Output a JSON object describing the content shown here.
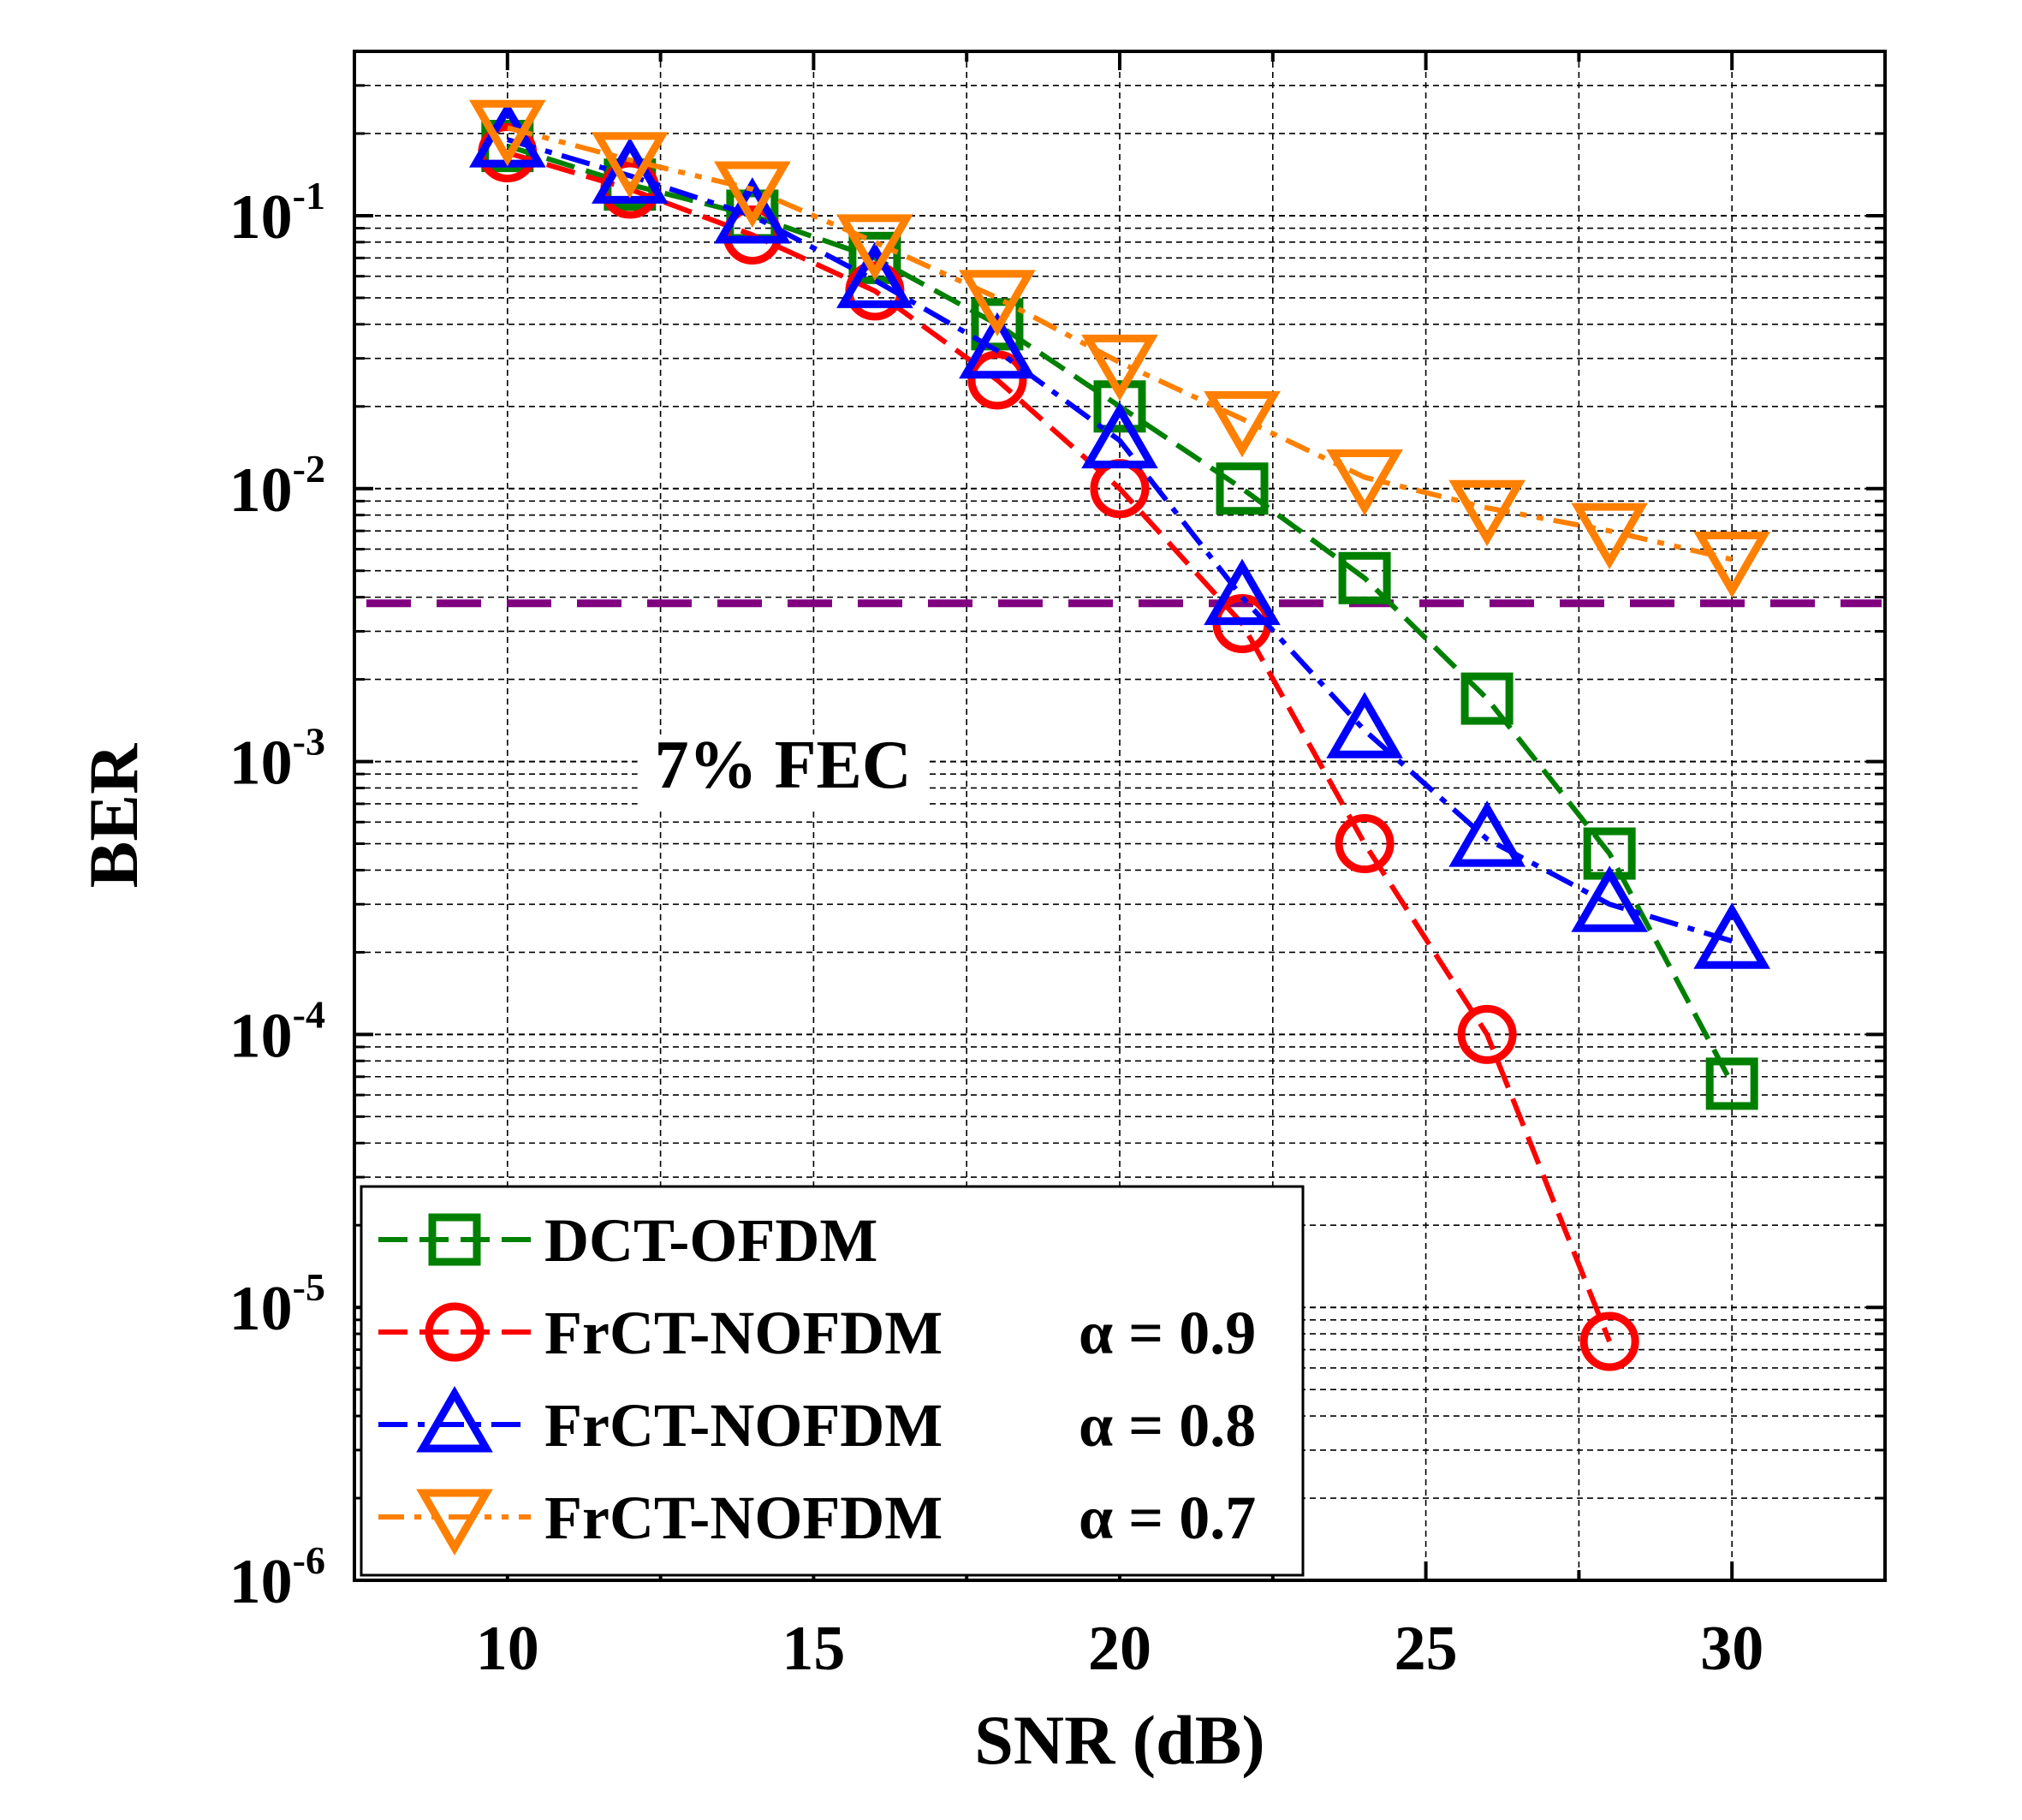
{
  "chart_data": {
    "type": "line",
    "xlabel": "SNR (dB)",
    "ylabel": "BER",
    "y_scale": "log",
    "xlim": [
      7.5,
      32.5
    ],
    "ylim": [
      1e-06,
      0.4
    ],
    "x_ticks": [
      10,
      15,
      20,
      25,
      30
    ],
    "y_ticks": [
      {
        "base": "10",
        "exp": "-1",
        "value": 0.1
      },
      {
        "base": "10",
        "exp": "-2",
        "value": 0.01
      },
      {
        "base": "10",
        "exp": "-3",
        "value": 0.001
      },
      {
        "base": "10",
        "exp": "-4",
        "value": 0.0001
      },
      {
        "base": "10",
        "exp": "-5",
        "value": 1e-05
      },
      {
        "base": "10",
        "exp": "-6",
        "value": 1e-06
      }
    ],
    "grid": true,
    "threshold": {
      "label": "7% FEC",
      "value": 0.0038,
      "color": "#800080"
    },
    "series": [
      {
        "name": "DCT-OFDM",
        "alpha_label": "",
        "color": "#008000",
        "marker": "square",
        "dash": "long-dash",
        "x": [
          10,
          12,
          14,
          16,
          18,
          20,
          22,
          24,
          26,
          28,
          30
        ],
        "values": [
          0.18,
          0.13,
          0.1,
          0.07,
          0.04,
          0.02,
          0.01,
          0.0047,
          0.0017,
          0.00046,
          6.6e-05
        ]
      },
      {
        "name": "FrCT-NOFDM",
        "alpha_label": "α = 0.9",
        "color": "#ff0000",
        "marker": "circle",
        "dash": "long-dash",
        "x": [
          10,
          12,
          14,
          16,
          18,
          20,
          22,
          24,
          26,
          28
        ],
        "values": [
          0.17,
          0.125,
          0.085,
          0.053,
          0.025,
          0.01,
          0.0032,
          0.0005,
          0.0001,
          7.5e-06
        ]
      },
      {
        "name": "FrCT-NOFDM",
        "alpha_label": "α = 0.8",
        "color": "#0000ff",
        "marker": "triangle-up",
        "dash": "dash-dot",
        "x": [
          10,
          12,
          14,
          16,
          18,
          20,
          22,
          24,
          26,
          28,
          30
        ],
        "values": [
          0.19,
          0.14,
          0.1,
          0.058,
          0.032,
          0.015,
          0.004,
          0.0013,
          0.00052,
          0.0003,
          0.00022
        ]
      },
      {
        "name": "FrCT-NOFDM",
        "alpha_label": "α = 0.7",
        "color": "#ff8000",
        "marker": "triangle-down",
        "dash": "dash-dot-dot",
        "x": [
          10,
          12,
          14,
          16,
          18,
          20,
          22,
          24,
          26,
          28,
          30
        ],
        "values": [
          0.21,
          0.16,
          0.125,
          0.08,
          0.05,
          0.029,
          0.018,
          0.011,
          0.0085,
          0.007,
          0.0055
        ]
      }
    ]
  }
}
